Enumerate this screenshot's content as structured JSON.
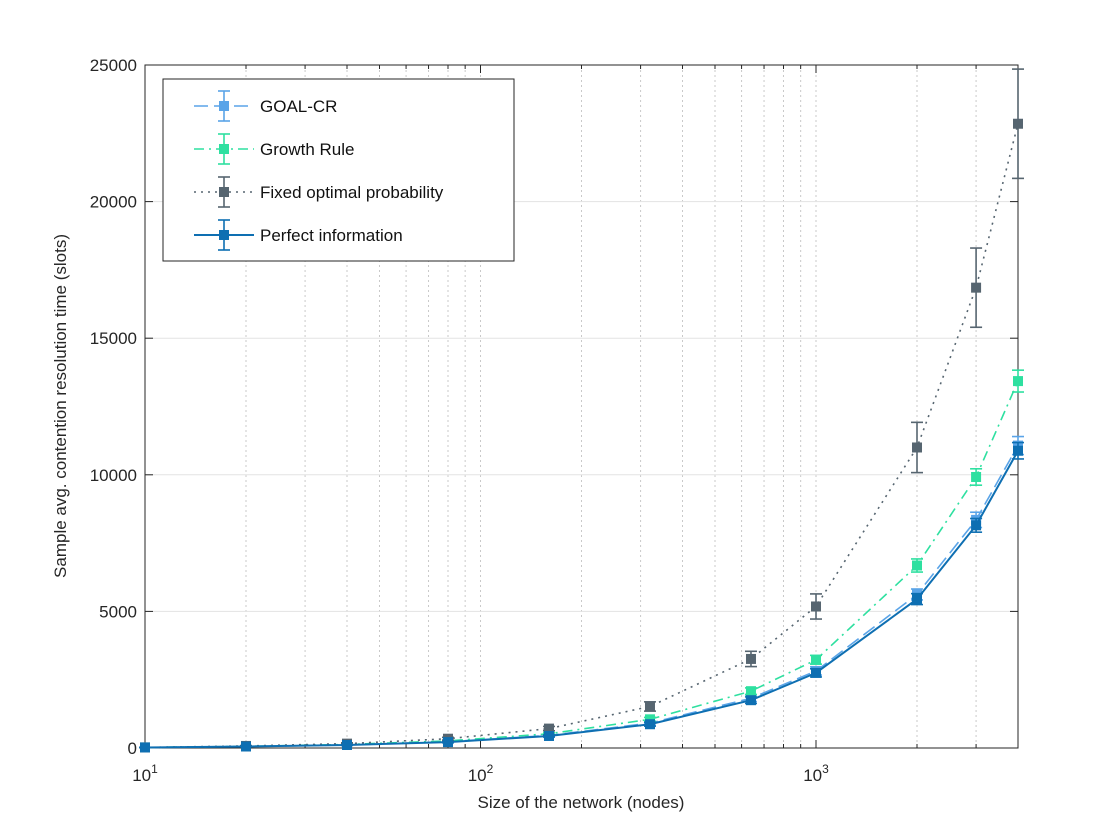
{
  "chart_data": {
    "type": "line",
    "xlabel": "Size of the network (nodes)",
    "ylabel": "Sample avg. contention resolution time (slots)",
    "xscale": "log",
    "xlim": [
      10,
      4000
    ],
    "ylim": [
      0,
      25000
    ],
    "grid": true,
    "legend_position": "top-left",
    "x": [
      10,
      20,
      40,
      80,
      160,
      320,
      640,
      1000,
      2000,
      3000,
      4000
    ],
    "x_ticks": [
      {
        "value": 10,
        "base": "10",
        "exp": "1"
      },
      {
        "value": 100,
        "base": "10",
        "exp": "2"
      },
      {
        "value": 1000,
        "base": "10",
        "exp": "3"
      }
    ],
    "y_ticks": [
      0,
      5000,
      10000,
      15000,
      20000,
      25000
    ],
    "series": [
      {
        "name": "GOAL-CR",
        "color": "#5aa4e8",
        "dash": "long-dash",
        "marker": "square",
        "values": [
          20,
          55,
          110,
          230,
          460,
          910,
          1820,
          2820,
          5620,
          8350,
          11070
        ],
        "err": [
          5,
          10,
          15,
          25,
          40,
          70,
          120,
          150,
          200,
          280,
          330
        ]
      },
      {
        "name": "Growth Rule",
        "color": "#2ee0a0",
        "dash": "dash-dot",
        "marker": "square",
        "values": [
          20,
          60,
          130,
          260,
          520,
          1050,
          2080,
          3230,
          6680,
          9920,
          13430
        ],
        "err": [
          5,
          10,
          15,
          25,
          40,
          70,
          120,
          160,
          240,
          300,
          400
        ]
      },
      {
        "name": "Fixed optimal probability",
        "color": "#566570",
        "dash": "dotted",
        "marker": "square",
        "values": [
          20,
          75,
          160,
          340,
          710,
          1520,
          3260,
          5180,
          11000,
          16850,
          22850
        ],
        "err": [
          5,
          15,
          30,
          50,
          80,
          170,
          280,
          460,
          920,
          1450,
          2000
        ]
      },
      {
        "name": "Perfect information",
        "color": "#0e6fb2",
        "dash": "solid",
        "marker": "square",
        "values": [
          20,
          55,
          110,
          215,
          440,
          870,
          1750,
          2750,
          5450,
          8150,
          10880
        ],
        "err": [
          5,
          10,
          15,
          25,
          40,
          70,
          120,
          150,
          200,
          250,
          300
        ]
      }
    ]
  }
}
